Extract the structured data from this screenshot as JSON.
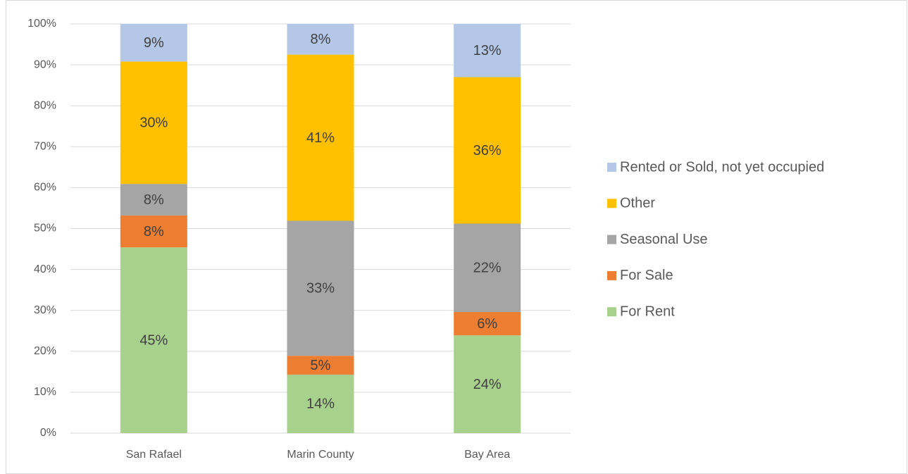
{
  "chart_data": {
    "type": "stacked_bar",
    "categories": [
      "San Rafael",
      "Marin County",
      "Bay Area"
    ],
    "series": [
      {
        "name": "For Rent",
        "color": "#a9d18e",
        "values": [
          45.4,
          14.3,
          23.9
        ],
        "value_labels": [
          "45%",
          "14%",
          "24%"
        ]
      },
      {
        "name": "For Sale",
        "color": "#ed7d31",
        "values": [
          7.8,
          4.6,
          5.7
        ],
        "value_labels": [
          "8%",
          "5%",
          "6%"
        ]
      },
      {
        "name": "Seasonal Use",
        "color": "#a5a5a5",
        "values": [
          7.7,
          33.0,
          21.6
        ],
        "value_labels": [
          "8%",
          "33%",
          "22%"
        ]
      },
      {
        "name": "Other",
        "color": "#ffc000",
        "values": [
          29.9,
          40.6,
          35.8
        ],
        "value_labels": [
          "30%",
          "41%",
          "36%"
        ]
      },
      {
        "name": "Rented or Sold, not yet occupied",
        "color": "#b4c7e7",
        "values": [
          9.2,
          7.5,
          13.0
        ],
        "value_labels": [
          "9%",
          "8%",
          "13%"
        ]
      }
    ],
    "ylim": [
      0,
      100
    ],
    "yticks": [
      {
        "value": 0,
        "label": "0%"
      },
      {
        "value": 10,
        "label": "10%"
      },
      {
        "value": 20,
        "label": "20%"
      },
      {
        "value": 30,
        "label": "30%"
      },
      {
        "value": 40,
        "label": "40%"
      },
      {
        "value": 50,
        "label": "50%"
      },
      {
        "value": 60,
        "label": "60%"
      },
      {
        "value": 70,
        "label": "70%"
      },
      {
        "value": 80,
        "label": "80%"
      },
      {
        "value": 90,
        "label": "90%"
      },
      {
        "value": 100,
        "label": "100%"
      }
    ],
    "grid": true,
    "legend": "right"
  }
}
